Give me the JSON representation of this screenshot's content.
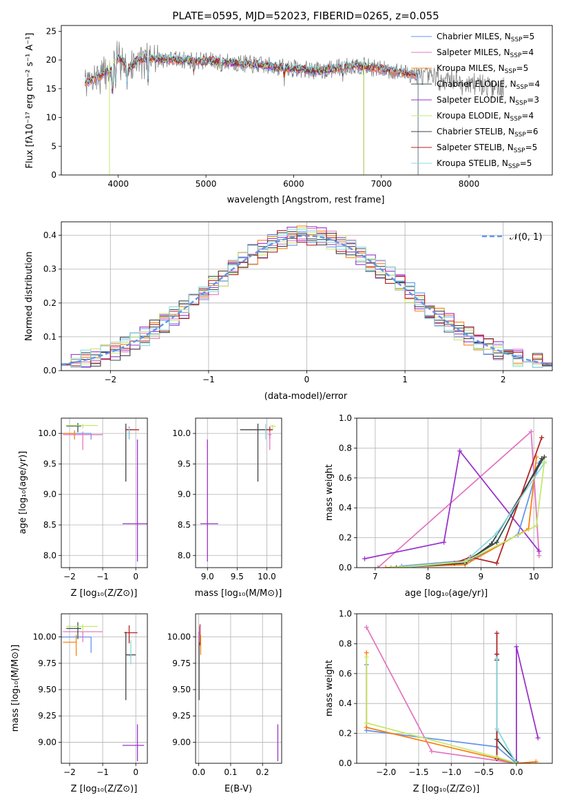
{
  "figure_title": "PLATE=0595, MJD=52023, FIBERID=0265, z=0.055",
  "chart_data": [
    {
      "id": "spectrum",
      "type": "line",
      "xlabel": "wavelength [Angstrom, rest frame]",
      "ylabel": "Flux [fλ10⁻¹⁷ erg cm⁻² s⁻¹ A⁻¹]",
      "xlim": [
        3350,
        8950
      ],
      "ylim": [
        0,
        26
      ],
      "xticks": [
        4000,
        5000,
        6000,
        7000,
        8000
      ],
      "yticks": [
        0,
        5,
        10,
        15,
        20,
        25
      ],
      "legend_position": "upper right",
      "data_curve_color": "#808080",
      "series": [
        {
          "name": "Chabrier MILES, N_SSP=5",
          "label_main": "Chabrier MILES, N",
          "label_sub": "SSP",
          "label_tail": "=5",
          "color": "#6495ed",
          "x_range": [
            3620,
            7420
          ]
        },
        {
          "name": "Salpeter MILES, N_SSP=4",
          "label_main": "Salpeter MILES, N",
          "label_sub": "SSP",
          "label_tail": "=4",
          "color": "#e377c2",
          "x_range": [
            3620,
            7420
          ]
        },
        {
          "name": "Kroupa MILES, N_SSP=5",
          "label_main": "Kroupa MILES, N",
          "label_sub": "SSP",
          "label_tail": "=5",
          "color": "#ff7f0e",
          "x_range": [
            3620,
            7420
          ]
        },
        {
          "name": "Chabrier ELODIE, N_SSP=4",
          "label_main": "Chabrier ELODIE, N",
          "label_sub": "SSP",
          "label_tail": "=4",
          "color": "#2f4f4f",
          "x_range": [
            3900,
            6800
          ]
        },
        {
          "name": "Salpeter ELODIE, N_SSP=3",
          "label_main": "Salpeter ELODIE, N",
          "label_sub": "SSP",
          "label_tail": "=3",
          "color": "#9932cc",
          "x_range": [
            3900,
            6800
          ]
        },
        {
          "name": "Kroupa ELODIE, N_SSP=4",
          "label_main": "Kroupa ELODIE, N",
          "label_sub": "SSP",
          "label_tail": "=4",
          "color": "#c5e86c",
          "x_range": [
            3900,
            6800
          ]
        },
        {
          "name": "Chabrier STELIB, N_SSP=6",
          "label_main": "Chabrier STELIB, N",
          "label_sub": "SSP",
          "label_tail": "=6",
          "color": "#404040",
          "x_range": [
            3620,
            7420
          ]
        },
        {
          "name": "Salpeter STELIB, N_SSP=5",
          "label_main": "Salpeter STELIB, N",
          "label_sub": "SSP",
          "label_tail": "=5",
          "color": "#b22222",
          "x_range": [
            3620,
            7420
          ]
        },
        {
          "name": "Kroupa STELIB, N_SSP=5",
          "label_main": "Kroupa STELIB, N",
          "label_sub": "SSP",
          "label_tail": "=5",
          "color": "#87d8e0",
          "x_range": [
            3620,
            7420
          ]
        }
      ]
    },
    {
      "id": "residuals",
      "type": "histogram",
      "xlabel": "(data-model)/error",
      "ylabel": "Normed distribution",
      "xlim": [
        -2.5,
        2.5
      ],
      "ylim": [
        0,
        0.44
      ],
      "xticks": [
        -2,
        -1,
        0,
        1,
        2
      ],
      "yticks": [
        0.0,
        0.1,
        0.2,
        0.3,
        0.4
      ],
      "grid": true,
      "legend_label": "𝒩(0, 1)",
      "normal_curve": {
        "mean": 0,
        "sigma": 1,
        "color": "#6495ed"
      },
      "bin_width": 0.1
    },
    {
      "id": "age_vs_Z",
      "type": "errorbar",
      "xlabel": "Z [log₁₀(Z/Z⊙)]",
      "ylabel": "age  [log₁₀(age/yr)]",
      "xlim": [
        -2.25,
        0.35
      ],
      "ylim": [
        7.8,
        10.25
      ],
      "xticks": [
        -2,
        -1,
        0
      ],
      "yticks": [
        8.0,
        8.5,
        9.0,
        9.5,
        10.0
      ],
      "points": [
        {
          "color": "#6495ed",
          "x": -1.35,
          "y": 10.0,
          "xerr": [
            0.9,
            0.0
          ],
          "yerr": [
            0.1,
            0.0
          ]
        },
        {
          "color": "#e377c2",
          "x": -1.6,
          "y": 9.98,
          "xerr": [
            0.6,
            0.6
          ],
          "yerr": [
            0.25,
            0.05
          ]
        },
        {
          "color": "#ff7f0e",
          "x": -1.85,
          "y": 10.0,
          "xerr": [
            0.35,
            0.0
          ],
          "yerr": [
            0.1,
            0.05
          ]
        },
        {
          "color": "#2f4f4f",
          "x": -1.75,
          "y": 10.12,
          "xerr": [
            0.35,
            0.1
          ],
          "yerr": [
            0.1,
            0.05
          ]
        },
        {
          "color": "#c5e86c",
          "x": -1.6,
          "y": 10.13,
          "xerr": [
            0.5,
            0.45
          ],
          "yerr": [
            0.05,
            0.02
          ]
        },
        {
          "color": "#404040",
          "x": -0.3,
          "y": 10.06,
          "xerr": [
            0.0,
            0.2
          ],
          "yerr": [
            0.85,
            0.1
          ]
        },
        {
          "color": "#b22222",
          "x": -0.2,
          "y": 10.06,
          "xerr": [
            0.1,
            0.3
          ],
          "yerr": [
            0.15,
            0.05
          ]
        },
        {
          "color": "#87d8e0",
          "x": -0.2,
          "y": 10.0,
          "xerr": [
            0.1,
            0.0
          ],
          "yerr": [
            0.1,
            0.1
          ]
        },
        {
          "color": "#9932cc",
          "x": 0.05,
          "y": 8.52,
          "xerr": [
            0.45,
            0.3
          ],
          "yerr": [
            0.62,
            1.38
          ]
        }
      ]
    },
    {
      "id": "age_vs_mass",
      "type": "errorbar",
      "xlabel": "mass [log₁₀(M/M⊙)]",
      "ylabel": "",
      "xlim": [
        8.8,
        10.25
      ],
      "ylim": [
        7.8,
        10.25
      ],
      "xticks": [
        9.0,
        9.5,
        10.0
      ],
      "yticks": [
        8.0,
        8.5,
        9.0,
        9.5,
        10.0
      ],
      "points": [
        {
          "color": "#9932cc",
          "x": 9.0,
          "y": 8.52,
          "xerr": [
            0.12,
            0.18
          ],
          "yerr": [
            0.62,
            1.38
          ]
        },
        {
          "color": "#404040",
          "x": 9.85,
          "y": 10.06,
          "xerr": [
            0.3,
            0.25
          ],
          "yerr": [
            0.85,
            0.1
          ]
        },
        {
          "color": "#b22222",
          "x": 10.05,
          "y": 10.06,
          "xerr": [
            0.05,
            0.05
          ],
          "yerr": [
            0.15,
            0.05
          ]
        },
        {
          "color": "#e377c2",
          "x": 10.05,
          "y": 9.98,
          "xerr": [
            0.03,
            0.03
          ],
          "yerr": [
            0.25,
            0.05
          ]
        },
        {
          "color": "#c5e86c",
          "x": 10.1,
          "y": 10.12,
          "xerr": [
            0.05,
            0.05
          ],
          "yerr": [
            0.05,
            0.02
          ]
        },
        {
          "color": "#87d8e0",
          "x": 9.98,
          "y": 10.05,
          "xerr": [
            0.0,
            0.0
          ],
          "yerr": [
            0.15,
            0.1
          ]
        }
      ]
    },
    {
      "id": "weight_vs_age",
      "type": "line",
      "xlabel": "age  [log₁₀(age/yr)]",
      "ylabel": "mass weight",
      "xlim": [
        6.65,
        10.35
      ],
      "ylim": [
        0,
        1.0
      ],
      "xticks": [
        7,
        8,
        9,
        10
      ],
      "yticks": [
        0.0,
        0.2,
        0.4,
        0.6,
        0.8,
        1.0
      ],
      "grid": true,
      "series": [
        {
          "color": "#e377c2",
          "x": [
            7.05,
            9.95,
            10.1
          ],
          "y": [
            0.0,
            0.91,
            0.08
          ]
        },
        {
          "color": "#9932cc",
          "x": [
            6.8,
            8.3,
            8.6,
            10.1
          ],
          "y": [
            0.06,
            0.17,
            0.78,
            0.11
          ]
        },
        {
          "color": "#6495ed",
          "x": [
            7.5,
            8.8,
            9.7,
            10.1
          ],
          "y": [
            0.01,
            0.05,
            0.22,
            0.7
          ]
        },
        {
          "color": "#ff7f0e",
          "x": [
            7.2,
            8.7,
            9.9,
            10.05
          ],
          "y": [
            0.0,
            0.02,
            0.26,
            0.74
          ]
        },
        {
          "color": "#2f4f4f",
          "x": [
            7.3,
            8.7,
            9.3,
            10.15
          ],
          "y": [
            0.0,
            0.04,
            0.17,
            0.73
          ]
        },
        {
          "color": "#404040",
          "x": [
            7.4,
            8.7,
            9.2,
            10.2
          ],
          "y": [
            0.0,
            0.03,
            0.16,
            0.74
          ]
        },
        {
          "color": "#b22222",
          "x": [
            7.3,
            8.5,
            8.8,
            9.3,
            10.15
          ],
          "y": [
            0.0,
            0.03,
            0.07,
            0.03,
            0.87
          ]
        },
        {
          "color": "#87d8e0",
          "x": [
            7.5,
            8.7,
            9.3,
            10.2
          ],
          "y": [
            0.0,
            0.04,
            0.23,
            0.7
          ]
        },
        {
          "color": "#c5e86c",
          "x": [
            7.3,
            8.7,
            10.05,
            10.2
          ],
          "y": [
            0.0,
            0.04,
            0.28,
            0.71
          ]
        }
      ]
    },
    {
      "id": "mass_vs_Z",
      "type": "errorbar",
      "xlabel": "Z [log₁₀(Z/Z⊙)]",
      "ylabel": "mass [log₁₀(M/M⊙)]",
      "xlim": [
        -2.25,
        0.35
      ],
      "ylim": [
        8.8,
        10.22
      ],
      "xticks": [
        -2,
        -1,
        0
      ],
      "yticks": [
        9.0,
        9.25,
        9.5,
        9.75,
        10.0
      ],
      "points": [
        {
          "color": "#6495ed",
          "x": -1.35,
          "y": 10.0,
          "xerr": [
            0.9,
            0.0
          ],
          "yerr": [
            0.15,
            0.0
          ]
        },
        {
          "color": "#e377c2",
          "x": -1.6,
          "y": 10.05,
          "xerr": [
            0.6,
            0.6
          ],
          "yerr": [
            0.1,
            0.0
          ]
        },
        {
          "color": "#ff7f0e",
          "x": -1.8,
          "y": 9.95,
          "xerr": [
            0.4,
            0.0
          ],
          "yerr": [
            0.13,
            0.07
          ]
        },
        {
          "color": "#2f4f4f",
          "x": -1.75,
          "y": 10.08,
          "xerr": [
            0.35,
            0.1
          ],
          "yerr": [
            0.1,
            0.06
          ]
        },
        {
          "color": "#c5e86c",
          "x": -1.6,
          "y": 10.1,
          "xerr": [
            0.5,
            0.45
          ],
          "yerr": [
            0.05,
            0.02
          ]
        },
        {
          "color": "#404040",
          "x": -0.3,
          "y": 9.83,
          "xerr": [
            0.0,
            0.3
          ],
          "yerr": [
            0.43,
            0.22
          ]
        },
        {
          "color": "#b22222",
          "x": -0.2,
          "y": 10.04,
          "xerr": [
            0.15,
            0.25
          ],
          "yerr": [
            0.1,
            0.07
          ]
        },
        {
          "color": "#87d8e0",
          "x": -0.15,
          "y": 9.82,
          "xerr": [
            0.05,
            0.0
          ],
          "yerr": [
            0.08,
            0.15
          ]
        },
        {
          "color": "#9932cc",
          "x": 0.05,
          "y": 8.97,
          "xerr": [
            0.45,
            0.2
          ],
          "yerr": [
            0.15,
            0.2
          ]
        }
      ]
    },
    {
      "id": "mass_vs_ebv",
      "type": "errorbar",
      "xlabel": "E(B-V)",
      "ylabel": "",
      "xlim": [
        -0.01,
        0.26
      ],
      "ylim": [
        8.8,
        10.22
      ],
      "xticks": [
        0.0,
        0.1,
        0.2
      ],
      "yticks": [
        9.0,
        9.25,
        9.5,
        9.75,
        10.0
      ],
      "points": [
        {
          "color": "#404040",
          "x": 0.001,
          "y": 9.83,
          "xerr": [
            0.0,
            0.0
          ],
          "yerr": [
            0.43,
            0.22
          ]
        },
        {
          "color": "#b22222",
          "x": 0.004,
          "y": 10.04,
          "xerr": [
            0.0,
            0.0
          ],
          "yerr": [
            0.12,
            0.08
          ]
        },
        {
          "color": "#e377c2",
          "x": 0.002,
          "y": 10.05,
          "xerr": [
            0.0,
            0.0
          ],
          "yerr": [
            0.1,
            0.05
          ]
        },
        {
          "color": "#ff7f0e",
          "x": 0.006,
          "y": 9.95,
          "xerr": [
            0.0,
            0.0
          ],
          "yerr": [
            0.12,
            0.07
          ]
        },
        {
          "color": "#9932cc",
          "x": 0.248,
          "y": 8.97,
          "xerr": [
            0.0,
            0.0
          ],
          "yerr": [
            0.15,
            0.2
          ]
        }
      ]
    },
    {
      "id": "weight_vs_Z",
      "type": "line",
      "xlabel": "Z [log₁₀(Z/Z⊙)]",
      "ylabel": "mass weight",
      "xlim": [
        -2.45,
        0.55
      ],
      "ylim": [
        0,
        1.0
      ],
      "xticks": [
        -2.0,
        -1.5,
        -1.0,
        -0.5,
        0.0
      ],
      "yticks": [
        0.0,
        0.2,
        0.4,
        0.6,
        0.8,
        1.0
      ],
      "grid": true,
      "series": [
        {
          "color": "#e377c2",
          "x": [
            -2.3,
            -1.3,
            0.0
          ],
          "y": [
            0.91,
            0.08,
            0.0
          ]
        },
        {
          "color": "#9932cc",
          "x": [
            -0.3,
            0.0,
            0.0,
            0.33
          ],
          "y": [
            0.03,
            0.0,
            0.78,
            0.17
          ]
        },
        {
          "color": "#6495ed",
          "x": [
            -2.3,
            -2.3,
            -0.3,
            0.0
          ],
          "y": [
            0.66,
            0.22,
            0.11,
            0.0
          ]
        },
        {
          "color": "#ff7f0e",
          "x": [
            -2.3,
            -2.3,
            0.0,
            0.3
          ],
          "y": [
            0.74,
            0.24,
            0.0,
            0.01
          ]
        },
        {
          "color": "#2f4f4f",
          "x": [
            -0.3,
            -0.3,
            0.0
          ],
          "y": [
            0.73,
            0.16,
            0.01
          ]
        },
        {
          "color": "#404040",
          "x": [
            -0.3,
            -0.3,
            0.0
          ],
          "y": [
            0.69,
            0.04,
            0.0
          ]
        },
        {
          "color": "#b22222",
          "x": [
            -0.3,
            -0.3,
            -0.3
          ],
          "y": [
            0.87,
            0.73,
            0.03
          ]
        },
        {
          "color": "#87d8e0",
          "x": [
            -0.3,
            -0.3,
            0.0
          ],
          "y": [
            0.7,
            0.23,
            0.0
          ]
        },
        {
          "color": "#c5e86c",
          "x": [
            -2.3,
            -2.3,
            -0.3,
            0.0
          ],
          "y": [
            0.71,
            0.27,
            0.04,
            0.0
          ]
        }
      ]
    }
  ]
}
